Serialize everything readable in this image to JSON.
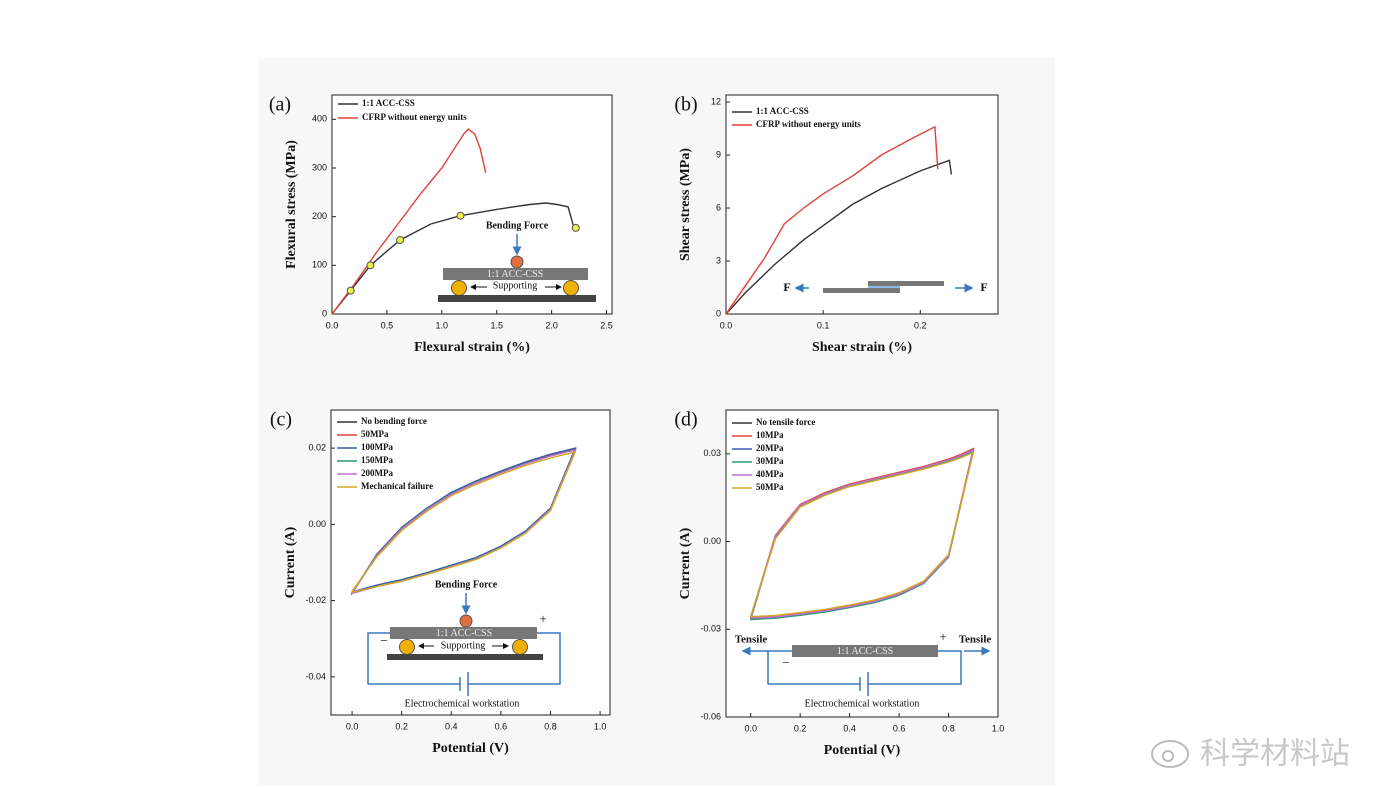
{
  "watermark": "科学材料站",
  "chart_data": [
    {
      "type": "line",
      "panel": "(a)",
      "xlabel": "Flexural strain (%)",
      "ylabel": "Flexural stress (MPa)",
      "xlim": [
        0,
        2.55
      ],
      "ylim": [
        0,
        450
      ],
      "xticks": [
        {
          "value": 0,
          "label": "0.0"
        },
        {
          "value": 0.5,
          "label": "0.5"
        },
        {
          "value": 1,
          "label": "1.0"
        },
        {
          "value": 1.5,
          "label": "1.5"
        },
        {
          "value": 2,
          "label": "2.0"
        },
        {
          "value": 2.5,
          "label": "2.5"
        }
      ],
      "yticks": [
        0,
        100,
        200,
        300,
        400
      ],
      "series": [
        {
          "name": "1:1 ACC-CSS",
          "color": "#333333",
          "x": [
            0,
            0.17,
            0.35,
            0.62,
            0.9,
            1.17,
            1.5,
            1.8,
            1.95,
            2.05,
            2.15,
            2.2
          ],
          "values": [
            0,
            48,
            100,
            152,
            185,
            202,
            215,
            225,
            228,
            225,
            220,
            180
          ]
        },
        {
          "name": "CFRP without energy units",
          "color": "#e0403a",
          "x": [
            0,
            0.2,
            0.4,
            0.6,
            0.8,
            1.0,
            1.1,
            1.2,
            1.24,
            1.3,
            1.35,
            1.4
          ],
          "values": [
            0,
            60,
            125,
            185,
            245,
            300,
            335,
            370,
            380,
            370,
            340,
            290
          ]
        }
      ],
      "markers": {
        "color": "#e8f04a",
        "x": [
          0.17,
          0.35,
          0.62,
          1.17,
          2.22
        ],
        "values": [
          48,
          100,
          152,
          202,
          177
        ]
      },
      "annotations": {
        "force": "Bending Force",
        "specimen": "1:1 ACC-CSS",
        "support": "Supporting"
      }
    },
    {
      "type": "line",
      "panel": "(b)",
      "xlabel": "Shear strain (%)",
      "ylabel": "Shear stress (MPa)",
      "xlim": [
        0,
        0.28
      ],
      "ylim": [
        0,
        12.4
      ],
      "xticks": [
        {
          "value": 0,
          "label": "0.0"
        },
        {
          "value": 0.1,
          "label": "0.1"
        },
        {
          "value": 0.2,
          "label": "0.2"
        }
      ],
      "yticks": [
        0,
        3,
        6,
        9,
        12
      ],
      "series": [
        {
          "name": "1:1 ACC-CSS",
          "color": "#333333",
          "x": [
            0,
            0.02,
            0.05,
            0.08,
            0.1,
            0.13,
            0.16,
            0.2,
            0.23,
            0.232
          ],
          "values": [
            0,
            1.2,
            2.8,
            4.2,
            5.0,
            6.2,
            7.1,
            8.1,
            8.7,
            7.9
          ]
        },
        {
          "name": "CFRP without energy units",
          "color": "#e0403a",
          "x": [
            0,
            0.02,
            0.04,
            0.06,
            0.08,
            0.1,
            0.13,
            0.16,
            0.19,
            0.215,
            0.218
          ],
          "values": [
            0,
            1.6,
            3.2,
            5.1,
            6.0,
            6.8,
            7.8,
            9.0,
            9.9,
            10.6,
            8.2
          ]
        }
      ],
      "annotations": {
        "force_left": "F",
        "force_right": "F"
      }
    },
    {
      "type": "loop",
      "panel": "(c)",
      "xlabel": "Potential (V)",
      "ylabel": "Current (A)",
      "xlim": [
        -0.085,
        1.04
      ],
      "ylim": [
        -0.05,
        0.03
      ],
      "xticks": [
        {
          "value": 0,
          "label": "0.0"
        },
        {
          "value": 0.2,
          "label": "0.2"
        },
        {
          "value": 0.4,
          "label": "0.4"
        },
        {
          "value": 0.6,
          "label": "0.6"
        },
        {
          "value": 0.8,
          "label": "0.8"
        },
        {
          "value": 1,
          "label": "1.0"
        }
      ],
      "yticks": [
        0.02,
        {
          "value": 0,
          "label": "0.00"
        },
        -0.02,
        -0.04
      ],
      "x": [
        0,
        0.1,
        0.2,
        0.3,
        0.4,
        0.5,
        0.6,
        0.7,
        0.8,
        0.9,
        0.8,
        0.7,
        0.6,
        0.5,
        0.4,
        0.3,
        0.2,
        0.1,
        0
      ],
      "series": [
        {
          "name": "No bending force",
          "color": "#333333",
          "values": [
            -0.018,
            -0.008,
            -0.001,
            0.004,
            0.0082,
            0.0112,
            0.0138,
            0.0162,
            0.0182,
            0.0198,
            0.0042,
            -0.0018,
            -0.0058,
            -0.0088,
            -0.0108,
            -0.0128,
            -0.0146,
            -0.016,
            -0.0178
          ]
        },
        {
          "name": "50MPa",
          "color": "#e0403a",
          "values": [
            -0.018,
            -0.008,
            -0.001,
            0.004,
            0.0081,
            0.0111,
            0.0137,
            0.0161,
            0.0181,
            0.0197,
            0.0041,
            -0.0019,
            -0.0059,
            -0.0089,
            -0.0109,
            -0.0129,
            -0.0147,
            -0.0161,
            -0.0179
          ]
        },
        {
          "name": "100MPa",
          "color": "#3b5ba8",
          "values": [
            -0.018,
            -0.0078,
            -0.0008,
            0.0042,
            0.0084,
            0.0114,
            0.014,
            0.0164,
            0.0184,
            0.02,
            0.0043,
            -0.0017,
            -0.0057,
            -0.0087,
            -0.0107,
            -0.0127,
            -0.0145,
            -0.0159,
            -0.0177
          ]
        },
        {
          "name": "150MPa",
          "color": "#2a9a7a",
          "values": [
            -0.018,
            -0.0081,
            -0.0011,
            0.0039,
            0.008,
            0.011,
            0.0136,
            0.016,
            0.018,
            0.0196,
            0.004,
            -0.002,
            -0.006,
            -0.009,
            -0.011,
            -0.013,
            -0.0148,
            -0.0162,
            -0.018
          ]
        },
        {
          "name": "200MPa",
          "color": "#c070d0",
          "values": [
            -0.018,
            -0.0082,
            -0.0012,
            0.0038,
            0.0079,
            0.0109,
            0.0135,
            0.0159,
            0.0179,
            0.0195,
            0.0039,
            -0.0021,
            -0.0061,
            -0.0091,
            -0.0111,
            -0.0131,
            -0.0149,
            -0.0163,
            -0.0181
          ]
        },
        {
          "name": "Mechanical failure",
          "color": "#d4a520",
          "values": [
            -0.0175,
            -0.0085,
            -0.0016,
            0.0034,
            0.0075,
            0.0105,
            0.0131,
            0.0155,
            0.0174,
            0.019,
            0.0036,
            -0.0023,
            -0.0062,
            -0.0092,
            -0.0112,
            -0.0131,
            -0.0149,
            -0.0163,
            -0.0178
          ]
        }
      ],
      "annotations": {
        "force": "Bending Force",
        "specimen": "1:1 ACC-CSS",
        "support": "Supporting",
        "plus": "+",
        "minus": "−",
        "instrument": "Electrochemical workstation"
      }
    },
    {
      "type": "loop",
      "panel": "(d)",
      "xlabel": "Potential (V)",
      "ylabel": "Current (A)",
      "xlim": [
        -0.1,
        1.0
      ],
      "ylim": [
        -0.06,
        0.045
      ],
      "xticks": [
        {
          "value": 0,
          "label": "0.0"
        },
        {
          "value": 0.2,
          "label": "0.2"
        },
        {
          "value": 0.4,
          "label": "0.4"
        },
        {
          "value": 0.6,
          "label": "0.6"
        },
        {
          "value": 0.8,
          "label": "0.8"
        },
        {
          "value": 1,
          "label": "1.0"
        }
      ],
      "yticks": [
        0.03,
        {
          "value": 0,
          "label": "0.00"
        },
        -0.03,
        -0.06
      ],
      "x": [
        0,
        0.1,
        0.2,
        0.3,
        0.4,
        0.5,
        0.6,
        0.7,
        0.8,
        0.85,
        0.9,
        0.8,
        0.7,
        0.6,
        0.5,
        0.4,
        0.3,
        0.2,
        0.1,
        0
      ],
      "series": [
        {
          "name": "No tensile force",
          "color": "#333333",
          "values": [
            -0.026,
            0.002,
            0.0125,
            0.0165,
            0.0195,
            0.0215,
            0.0235,
            0.0255,
            0.028,
            0.0295,
            0.0315,
            -0.005,
            -0.014,
            -0.018,
            -0.0205,
            -0.0222,
            -0.0237,
            -0.0248,
            -0.0258,
            -0.0262
          ]
        },
        {
          "name": "10MPa",
          "color": "#e0403a",
          "values": [
            -0.026,
            0.0022,
            0.0127,
            0.0167,
            0.0197,
            0.0217,
            0.0237,
            0.0257,
            0.0282,
            0.0298,
            0.0318,
            -0.0049,
            -0.0139,
            -0.0179,
            -0.0204,
            -0.0221,
            -0.0236,
            -0.0247,
            -0.0257,
            -0.0261
          ]
        },
        {
          "name": "20MPa",
          "color": "#3b5ba8",
          "values": [
            -0.0265,
            0.0018,
            0.0122,
            0.0162,
            0.0192,
            0.0212,
            0.0232,
            0.0252,
            0.0277,
            0.0292,
            0.0312,
            -0.0052,
            -0.0142,
            -0.0183,
            -0.0208,
            -0.0225,
            -0.024,
            -0.0251,
            -0.0261,
            -0.0266
          ]
        },
        {
          "name": "30MPa",
          "color": "#2a9a7a",
          "values": [
            -0.0265,
            0.0017,
            0.0121,
            0.0161,
            0.0191,
            0.0211,
            0.0231,
            0.0251,
            0.0276,
            0.0291,
            0.031,
            -0.0053,
            -0.0143,
            -0.0184,
            -0.0209,
            -0.0226,
            -0.0241,
            -0.0252,
            -0.0262,
            -0.0267
          ]
        },
        {
          "name": "40MPa",
          "color": "#c070d0",
          "values": [
            -0.026,
            0.002,
            0.0124,
            0.0164,
            0.0194,
            0.0214,
            0.0234,
            0.0254,
            0.0279,
            0.0294,
            0.0314,
            -0.005,
            -0.014,
            -0.018,
            -0.0205,
            -0.0222,
            -0.0237,
            -0.0248,
            -0.0258,
            -0.0262
          ]
        },
        {
          "name": "50MPa",
          "color": "#d4a520",
          "values": [
            -0.0255,
            0.001,
            0.0118,
            0.0158,
            0.0188,
            0.0208,
            0.0228,
            0.0248,
            0.0272,
            0.0287,
            0.0305,
            -0.0045,
            -0.0135,
            -0.0175,
            -0.02,
            -0.0217,
            -0.0232,
            -0.0243,
            -0.0253,
            -0.0257
          ]
        }
      ],
      "annotations": {
        "tension_left": "Tensile",
        "tension_right": "Tensile",
        "specimen": "1:1 ACC-CSS",
        "plus": "+",
        "minus": "−",
        "instrument": "Electrochemical workstation"
      }
    }
  ]
}
